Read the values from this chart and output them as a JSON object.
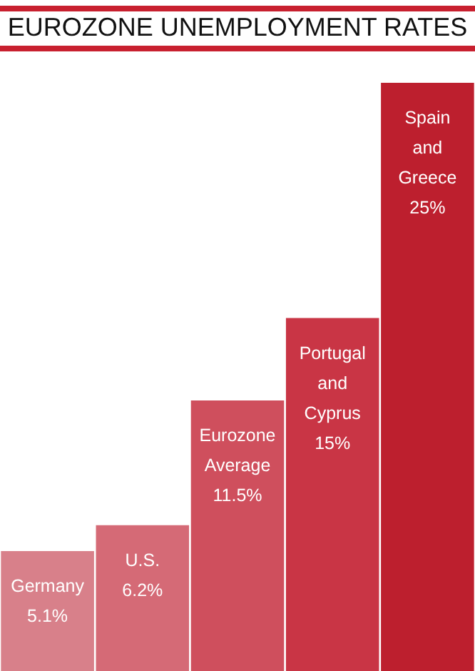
{
  "chart_data": {
    "type": "bar",
    "title": "EUROZONE UNEMPLOYMENT RATES",
    "categories": [
      "Germany",
      "U.S.",
      "Eurozone Average",
      "Portugal and Cyprus",
      "Spain and Greece"
    ],
    "values": [
      5.1,
      6.2,
      11.5,
      15,
      25
    ],
    "colors": [
      "#d8808a",
      "#d56a76",
      "#cf4f5d",
      "#c93545",
      "#bd1f2e"
    ],
    "value_labels": [
      "5.1%",
      "6.2%",
      "11.5%",
      "15%",
      "25%"
    ]
  }
}
